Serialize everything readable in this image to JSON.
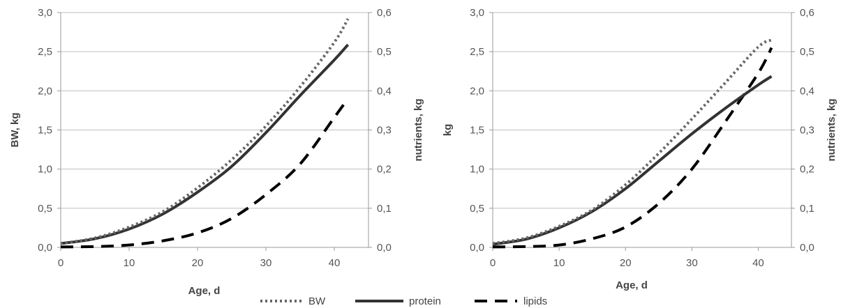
{
  "chart_data": [
    {
      "type": "line",
      "xlabel": "Age, d",
      "ylabel": "BW, kg",
      "y2label": "nutrients, kg",
      "xlim": [
        0,
        45
      ],
      "ylim": [
        0,
        3.0
      ],
      "y2lim": [
        0,
        0.6
      ],
      "xticks": [
        "0",
        "10",
        "20",
        "30",
        "40"
      ],
      "yticks": [
        "0,0",
        "0,5",
        "1,0",
        "1,5",
        "2,0",
        "2,5",
        "3,0"
      ],
      "y2ticks": [
        "0,0",
        "0,1",
        "0,2",
        "0,3",
        "0,4",
        "0,5",
        "0,6"
      ],
      "grid": "horizontal",
      "x": [
        0,
        5,
        10,
        15,
        20,
        25,
        30,
        35,
        40,
        42
      ],
      "series": [
        {
          "name": "BW",
          "axis": "left",
          "values": [
            0.05,
            0.12,
            0.26,
            0.46,
            0.76,
            1.12,
            1.55,
            2.05,
            2.62,
            2.92
          ]
        },
        {
          "name": "protein",
          "axis": "right",
          "values": [
            0.01,
            0.022,
            0.047,
            0.086,
            0.141,
            0.207,
            0.293,
            0.388,
            0.479,
            0.518
          ]
        },
        {
          "name": "lipids",
          "axis": "right",
          "values": [
            0.001,
            0.002,
            0.006,
            0.017,
            0.037,
            0.074,
            0.135,
            0.213,
            0.332,
            0.38
          ]
        }
      ]
    },
    {
      "type": "line",
      "xlabel": "Age, d",
      "ylabel": "kg",
      "y2label": "nutrients, kg",
      "xlim": [
        0,
        45
      ],
      "ylim": [
        0,
        3.0
      ],
      "y2lim": [
        0,
        0.6
      ],
      "xticks": [
        "0",
        "10",
        "20",
        "30",
        "40"
      ],
      "yticks": [
        "0,0",
        "0,5",
        "1,0",
        "1,5",
        "2,0",
        "2,5",
        "3,0"
      ],
      "y2ticks": [
        "0,0",
        "0,1",
        "0,2",
        "0,3",
        "0,4",
        "0,5",
        "0,6"
      ],
      "grid": "horizontal",
      "x": [
        0,
        5,
        10,
        15,
        20,
        25,
        30,
        35,
        40,
        42
      ],
      "series": [
        {
          "name": "BW",
          "axis": "left",
          "values": [
            0.05,
            0.12,
            0.27,
            0.48,
            0.8,
            1.2,
            1.64,
            2.1,
            2.56,
            2.65
          ]
        },
        {
          "name": "protein",
          "axis": "right",
          "values": [
            0.008,
            0.021,
            0.05,
            0.092,
            0.15,
            0.22,
            0.29,
            0.355,
            0.415,
            0.437
          ]
        },
        {
          "name": "lipids",
          "axis": "right",
          "values": [
            0.001,
            0.002,
            0.006,
            0.022,
            0.052,
            0.112,
            0.2,
            0.32,
            0.445,
            0.51
          ]
        }
      ]
    }
  ],
  "legend": {
    "items": [
      {
        "label": "BW",
        "style": "dotted",
        "color": "#666666"
      },
      {
        "label": "protein",
        "style": "solid",
        "color": "#333333"
      },
      {
        "label": "lipids",
        "style": "dashed",
        "color": "#000000"
      }
    ]
  }
}
